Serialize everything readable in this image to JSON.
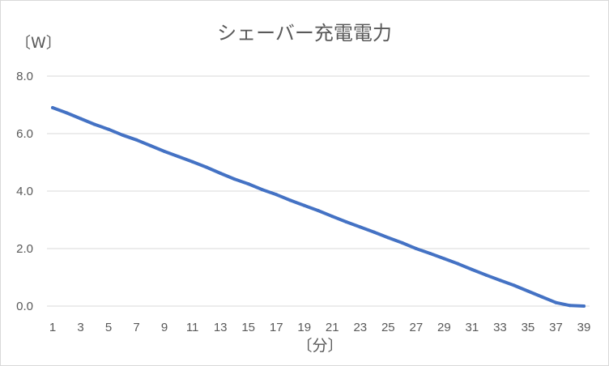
{
  "chart_data": {
    "type": "line",
    "title": "シェーバー充電電力",
    "ylabel": "〔W〕",
    "xlabel": "〔分〕",
    "ylim": [
      0,
      8
    ],
    "y_ticks": [
      "0.0",
      "2.0",
      "4.0",
      "6.0",
      "8.0"
    ],
    "x_tick_labels": [
      "1",
      "3",
      "5",
      "7",
      "9",
      "11",
      "13",
      "15",
      "17",
      "19",
      "21",
      "23",
      "25",
      "27",
      "29",
      "31",
      "33",
      "35",
      "37",
      "39"
    ],
    "grid": true,
    "legend": "none",
    "color": "#4472c4",
    "x": [
      1,
      2,
      3,
      4,
      5,
      6,
      7,
      8,
      9,
      10,
      11,
      12,
      13,
      14,
      15,
      16,
      17,
      18,
      19,
      20,
      21,
      22,
      23,
      24,
      25,
      26,
      27,
      28,
      29,
      30,
      31,
      32,
      33,
      34,
      35,
      36,
      37,
      38,
      39
    ],
    "values": [
      6.9,
      6.72,
      6.52,
      6.32,
      6.15,
      5.95,
      5.78,
      5.58,
      5.38,
      5.2,
      5.02,
      4.83,
      4.62,
      4.42,
      4.25,
      4.05,
      3.88,
      3.68,
      3.5,
      3.32,
      3.12,
      2.93,
      2.75,
      2.57,
      2.38,
      2.2,
      2.0,
      1.83,
      1.65,
      1.47,
      1.27,
      1.08,
      0.9,
      0.72,
      0.52,
      0.32,
      0.12,
      0.02,
      0.0
    ]
  }
}
